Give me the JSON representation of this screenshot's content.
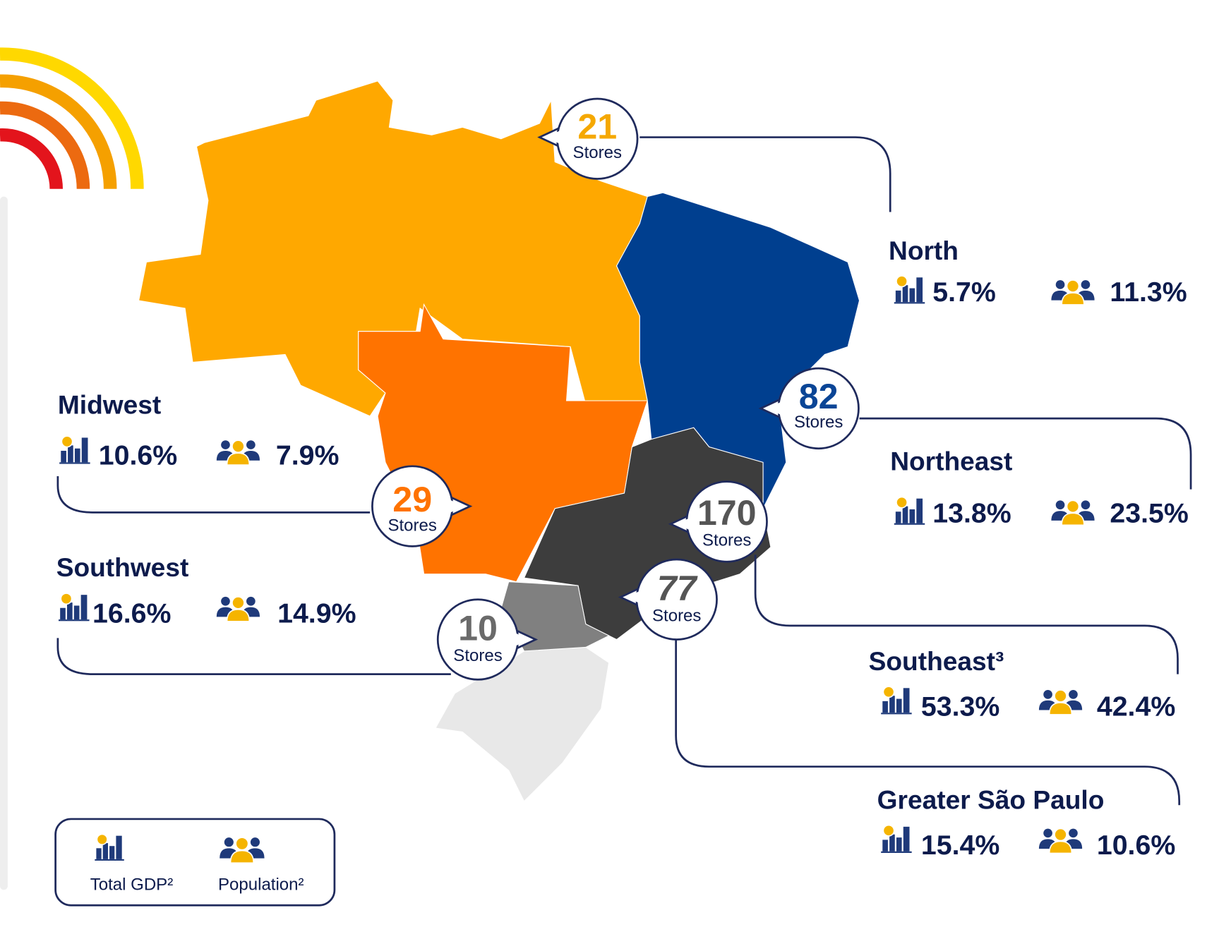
{
  "regions": [
    {
      "name": "North",
      "stores": "21",
      "stores_label": "Stores",
      "gdp": "5.7%",
      "population": "11.3%"
    },
    {
      "name": "Northeast",
      "stores": "82",
      "stores_label": "Stores",
      "gdp": "13.8%",
      "population": "23.5%"
    },
    {
      "name": "Midwest",
      "stores": "29",
      "stores_label": "Stores",
      "gdp": "10.6%",
      "population": "7.9%"
    },
    {
      "name": "Southwest",
      "stores": "10",
      "stores_label": "Stores",
      "gdp": "16.6%",
      "population": "14.9%"
    },
    {
      "name": "Southeast³",
      "stores": "170",
      "stores_label": "Stores",
      "gdp": "53.3%",
      "population": "42.4%"
    },
    {
      "name": "Greater São Paulo",
      "stores": "77",
      "stores_label": "Stores",
      "gdp": "15.4%",
      "population": "10.6%"
    }
  ],
  "legend": {
    "gdp": "Total GDP²",
    "population": "Population²"
  }
}
